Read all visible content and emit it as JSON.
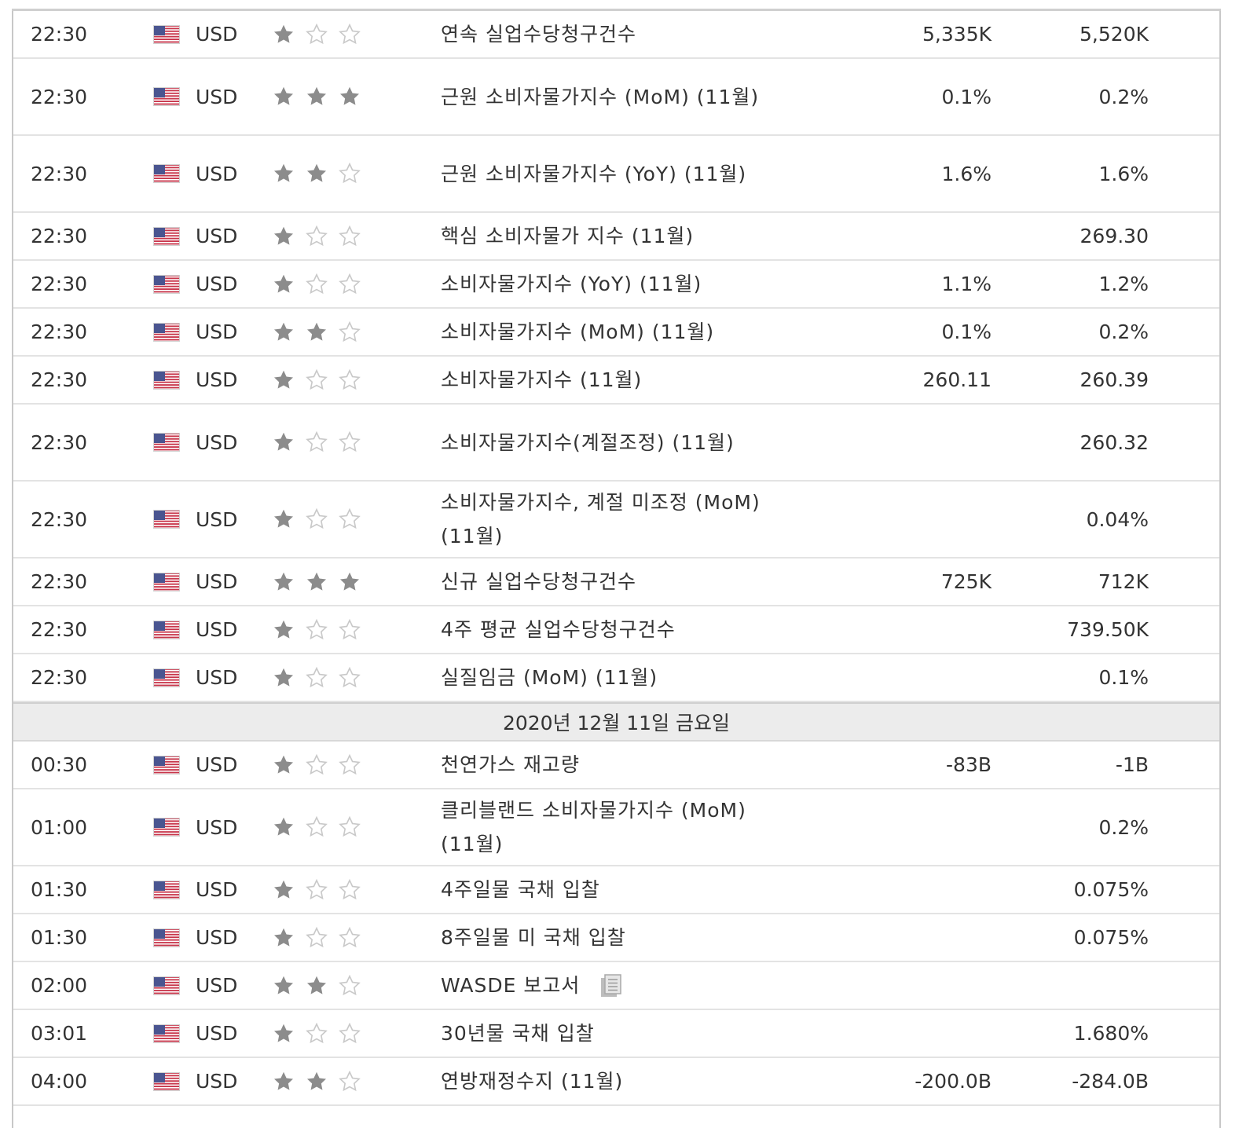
{
  "colors": {
    "star_filled": "#8c8c8c",
    "star_empty": "#c9c9c9",
    "date_bar_bg": "#ececec",
    "row_border": "#e3e3e3"
  },
  "rows_before": [
    {
      "time": "22:30",
      "currency": "USD",
      "importance": 1,
      "event": "연속 실업수당청구건수",
      "actual": "5,335K",
      "previous": "5,520K",
      "lines": 1
    },
    {
      "time": "22:30",
      "currency": "USD",
      "importance": 3,
      "event": "근원 소비자물가지수 (MoM) (11월)",
      "actual": "0.1%",
      "previous": "0.2%",
      "lines": 2
    },
    {
      "time": "22:30",
      "currency": "USD",
      "importance": 2,
      "event": "근원 소비자물가지수 (YoY) (11월)",
      "actual": "1.6%",
      "previous": "1.6%",
      "lines": 2
    },
    {
      "time": "22:30",
      "currency": "USD",
      "importance": 1,
      "event": "핵심 소비자물가 지수 (11월)",
      "actual": "",
      "previous": "269.30",
      "lines": 1
    },
    {
      "time": "22:30",
      "currency": "USD",
      "importance": 1,
      "event": "소비자물가지수 (YoY) (11월)",
      "actual": "1.1%",
      "previous": "1.2%",
      "lines": 1
    },
    {
      "time": "22:30",
      "currency": "USD",
      "importance": 2,
      "event": "소비자물가지수 (MoM) (11월)",
      "actual": "0.1%",
      "previous": "0.2%",
      "lines": 1
    },
    {
      "time": "22:30",
      "currency": "USD",
      "importance": 1,
      "event": "소비자물가지수 (11월)",
      "actual": "260.11",
      "previous": "260.39",
      "lines": 1
    },
    {
      "time": "22:30",
      "currency": "USD",
      "importance": 1,
      "event": "소비자물가지수(계절조정) (11월)",
      "actual": "",
      "previous": "260.32",
      "lines": 2
    },
    {
      "time": "22:30",
      "currency": "USD",
      "importance": 1,
      "event": "소비자물가지수, 계절 미조정 (MoM) (11월)",
      "actual": "",
      "previous": "0.04%",
      "lines": 2
    },
    {
      "time": "22:30",
      "currency": "USD",
      "importance": 3,
      "event": "신규 실업수당청구건수",
      "actual": "725K",
      "previous": "712K",
      "lines": 1
    },
    {
      "time": "22:30",
      "currency": "USD",
      "importance": 1,
      "event": "4주 평균 실업수당청구건수",
      "actual": "",
      "previous": "739.50K",
      "lines": 1
    },
    {
      "time": "22:30",
      "currency": "USD",
      "importance": 1,
      "event": "실질임금 (MoM) (11월)",
      "actual": "",
      "previous": "0.1%",
      "lines": 1
    }
  ],
  "date_separator": "2020년 12월 11일 금요일",
  "rows_after": [
    {
      "time": "00:30",
      "currency": "USD",
      "importance": 1,
      "event": "천연가스 재고량",
      "actual": "-83B",
      "previous": "-1B",
      "lines": 1
    },
    {
      "time": "01:00",
      "currency": "USD",
      "importance": 1,
      "event": "클리블랜드 소비자물가지수 (MoM) (11월)",
      "actual": "",
      "previous": "0.2%",
      "lines": 2
    },
    {
      "time": "01:30",
      "currency": "USD",
      "importance": 1,
      "event": "4주일물 국채 입찰",
      "actual": "",
      "previous": "0.075%",
      "lines": 1
    },
    {
      "time": "01:30",
      "currency": "USD",
      "importance": 1,
      "event": "8주일물 미 국채 입찰",
      "actual": "",
      "previous": "0.075%",
      "lines": 1
    },
    {
      "time": "02:00",
      "currency": "USD",
      "importance": 2,
      "event": "WASDE 보고서",
      "actual": "",
      "previous": "",
      "lines": 1,
      "doc_icon": "document-icon"
    },
    {
      "time": "03:01",
      "currency": "USD",
      "importance": 1,
      "event": "30년물 국채 입찰",
      "actual": "",
      "previous": "1.680%",
      "lines": 1
    },
    {
      "time": "04:00",
      "currency": "USD",
      "importance": 2,
      "event": "연방재정수지 (11월)",
      "actual": "-200.0B",
      "previous": "-284.0B",
      "lines": 1
    }
  ]
}
